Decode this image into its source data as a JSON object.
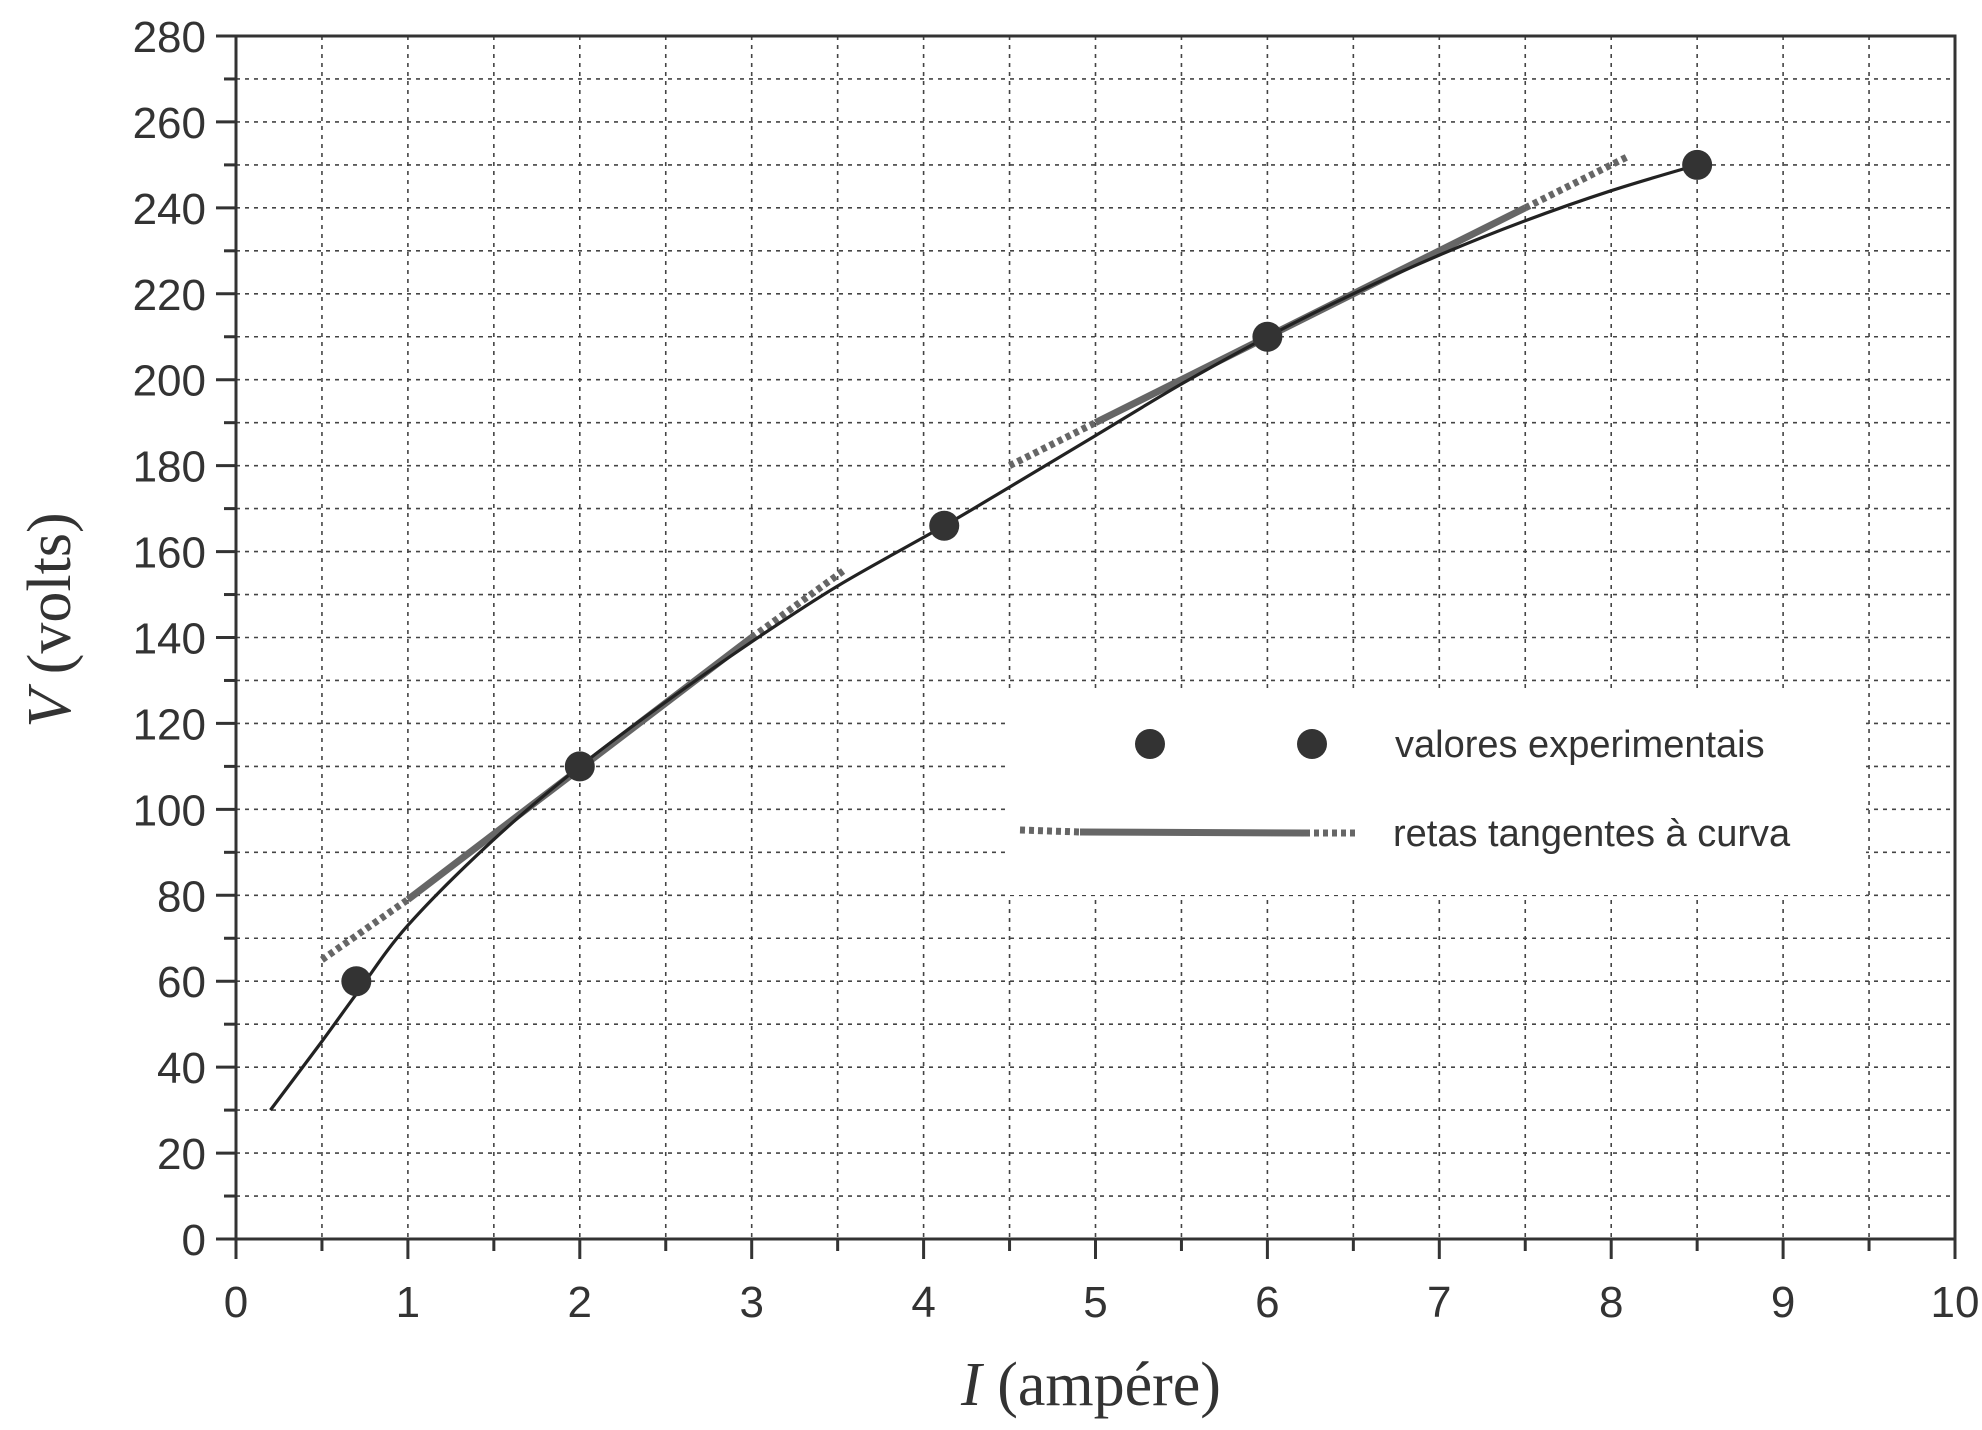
{
  "chart_data": {
    "type": "scatter",
    "xlabel": {
      "var": "I",
      "unit": "(ampére)"
    },
    "ylabel": {
      "var": "V",
      "unit": "(volts)"
    },
    "xlim": [
      0,
      10
    ],
    "ylim": [
      0,
      280
    ],
    "x_ticks": [
      0,
      1,
      2,
      3,
      4,
      5,
      6,
      7,
      8,
      9,
      10
    ],
    "y_ticks": [
      0,
      20,
      40,
      60,
      80,
      100,
      120,
      140,
      160,
      180,
      200,
      220,
      240,
      260,
      280
    ],
    "grid": "dotted, every 0.5 A and 10 V",
    "legend_position": "center-right",
    "colors": {
      "marker": "#333333",
      "curve": "#222222",
      "tangent": "#666666",
      "grid": "#444444"
    },
    "series": [
      {
        "name": "valores experimentais",
        "kind": "points",
        "x": [
          0.7,
          2.0,
          4.12,
          6.0,
          8.5
        ],
        "y": [
          60,
          110,
          166,
          210,
          250
        ]
      },
      {
        "kind": "curve",
        "x": [
          0.2,
          0.5,
          0.7,
          1.0,
          1.5,
          2.0,
          2.5,
          3.0,
          3.5,
          4.12,
          4.5,
          5.0,
          5.5,
          6.0,
          6.5,
          7.0,
          7.5,
          8.0,
          8.5
        ],
        "y": [
          30,
          46,
          57,
          73,
          93,
          110,
          125,
          139,
          152,
          166,
          175,
          187,
          199,
          210,
          220,
          229,
          237,
          244,
          250
        ]
      },
      {
        "name": "retas tangentes à curva",
        "kind": "tangents",
        "segments": [
          {
            "x": [
              0.5,
              1.0
            ],
            "y": [
              65,
              79
            ],
            "style": "dotted"
          },
          {
            "x": [
              1.0,
              3.0
            ],
            "y": [
              79,
              140
            ],
            "style": "solid"
          },
          {
            "x": [
              3.0,
              3.55
            ],
            "y": [
              140,
              156
            ],
            "style": "dotted"
          },
          {
            "x": [
              4.5,
              5.0
            ],
            "y": [
              180,
              190
            ],
            "style": "dotted"
          },
          {
            "x": [
              5.0,
              7.5
            ],
            "y": [
              190,
              240
            ],
            "style": "solid"
          },
          {
            "x": [
              7.5,
              8.1
            ],
            "y": [
              240,
              252
            ],
            "style": "dotted"
          }
        ]
      }
    ]
  }
}
